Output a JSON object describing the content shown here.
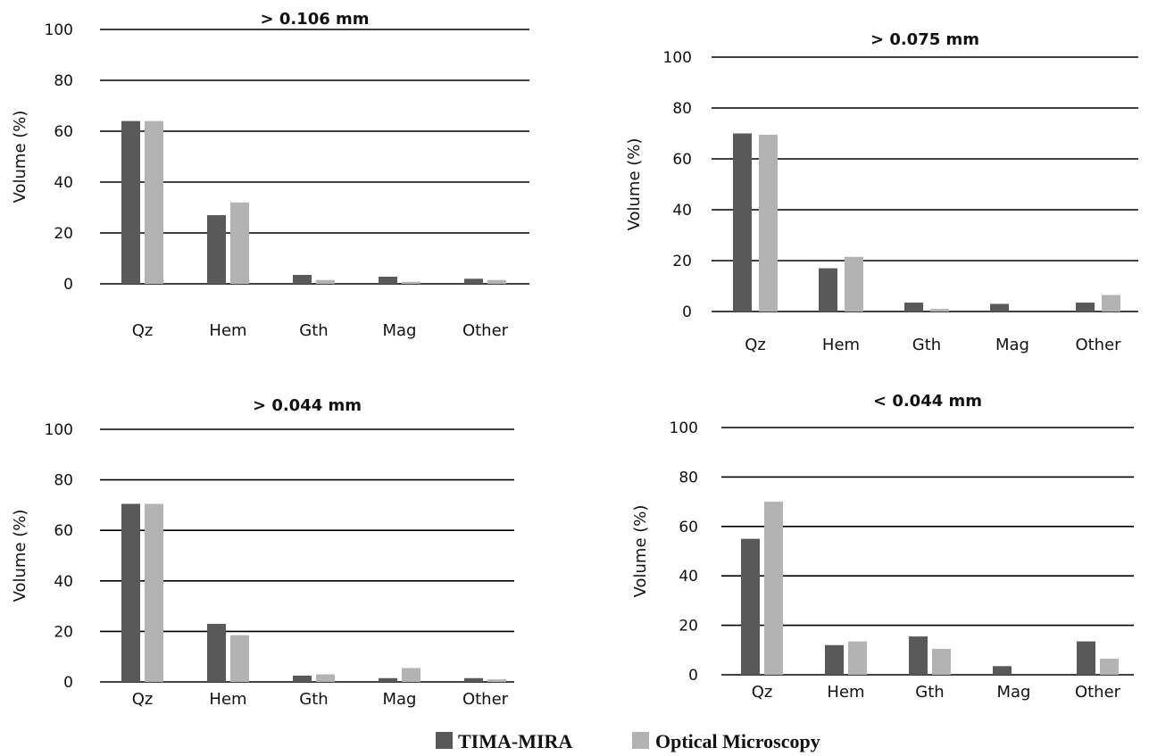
{
  "legend": [
    {
      "name": "TIMA-MIRA",
      "color": "#595959"
    },
    {
      "name": "Optical Microscopy",
      "color": "#b3b3b3"
    }
  ],
  "chart_data": [
    {
      "type": "bar",
      "title": "> 0.106 mm",
      "ylabel": "Volume (%)",
      "ylim": [
        0,
        100
      ],
      "yticks": [
        0,
        20,
        40,
        60,
        80,
        100
      ],
      "grid": true,
      "categories": [
        "Qz",
        "Hem",
        "Gth",
        "Mag",
        "Other"
      ],
      "series": [
        {
          "name": "TIMA-MIRA",
          "values": [
            64,
            27,
            3.5,
            2.8,
            2
          ]
        },
        {
          "name": "Optical Microscopy",
          "values": [
            64,
            32,
            1.5,
            0.8,
            1.5
          ]
        }
      ]
    },
    {
      "type": "bar",
      "title": "> 0.075 mm",
      "ylabel": "Volume (%)",
      "ylim": [
        0,
        100
      ],
      "yticks": [
        0,
        20,
        40,
        60,
        80,
        100
      ],
      "grid": true,
      "categories": [
        "Qz",
        "Hem",
        "Gth",
        "Mag",
        "Other"
      ],
      "series": [
        {
          "name": "TIMA-MIRA",
          "values": [
            70,
            17,
            3.5,
            3,
            3.5
          ]
        },
        {
          "name": "Optical Microscopy",
          "values": [
            69.5,
            21.5,
            1,
            0,
            6.5
          ]
        }
      ]
    },
    {
      "type": "bar",
      "title": "> 0.044 mm",
      "ylabel": "Volume (%)",
      "ylim": [
        0,
        100
      ],
      "yticks": [
        0,
        20,
        40,
        60,
        80,
        100
      ],
      "grid": true,
      "categories": [
        "Qz",
        "Hem",
        "Gth",
        "Mag",
        "Other"
      ],
      "series": [
        {
          "name": "TIMA-MIRA",
          "values": [
            70.5,
            23,
            2.5,
            1.5,
            1.5
          ]
        },
        {
          "name": "Optical Microscopy",
          "values": [
            70.5,
            18.5,
            3,
            5.5,
            1
          ]
        }
      ]
    },
    {
      "type": "bar",
      "title": "< 0.044 mm",
      "ylabel": "Volume (%)",
      "ylim": [
        0,
        100
      ],
      "yticks": [
        0,
        20,
        40,
        60,
        80,
        100
      ],
      "grid": true,
      "categories": [
        "Qz",
        "Hem",
        "Gth",
        "Mag",
        "Other"
      ],
      "series": [
        {
          "name": "TIMA-MIRA",
          "values": [
            55,
            12,
            15.5,
            3.5,
            13.5
          ]
        },
        {
          "name": "Optical Microscopy",
          "values": [
            70,
            13.5,
            10.5,
            0,
            6.5
          ]
        }
      ]
    }
  ]
}
